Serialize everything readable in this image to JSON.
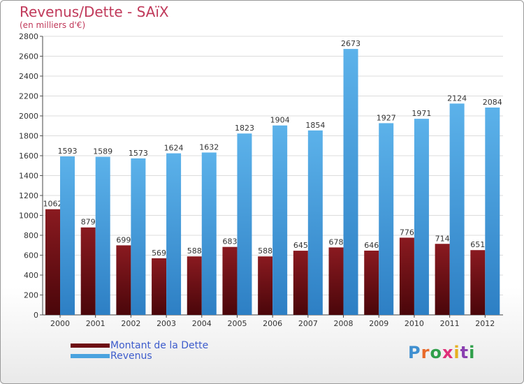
{
  "header": {
    "title": "Revenus/Dette - SAïX",
    "subtitle": "(en milliers d'€)"
  },
  "brand": {
    "logo_text": "Proxiti"
  },
  "colors": {
    "debt": "#6e0e14",
    "revenue": "#4aa3df",
    "title": "#c0395a",
    "legend_text": "#3d5ccc"
  },
  "chart_data": {
    "type": "bar",
    "title": "Revenus/Dette - SAïX",
    "subtitle": "(en milliers d'€)",
    "xlabel": "",
    "ylabel": "",
    "ylim": [
      0,
      2800
    ],
    "ytick_step": 200,
    "grid": true,
    "legend_position": "bottom-left",
    "categories": [
      "2000",
      "2001",
      "2002",
      "2003",
      "2004",
      "2005",
      "2006",
      "2007",
      "2008",
      "2009",
      "2010",
      "2011",
      "2012"
    ],
    "series": [
      {
        "name": "Montant de la Dette",
        "values": [
          1062,
          879,
          699,
          569,
          588,
          683,
          588,
          645,
          678,
          646,
          776,
          714,
          651
        ]
      },
      {
        "name": "Revenus",
        "values": [
          1593,
          1589,
          1573,
          1624,
          1632,
          1823,
          1904,
          1854,
          2673,
          1927,
          1971,
          2124,
          2084
        ]
      }
    ]
  }
}
